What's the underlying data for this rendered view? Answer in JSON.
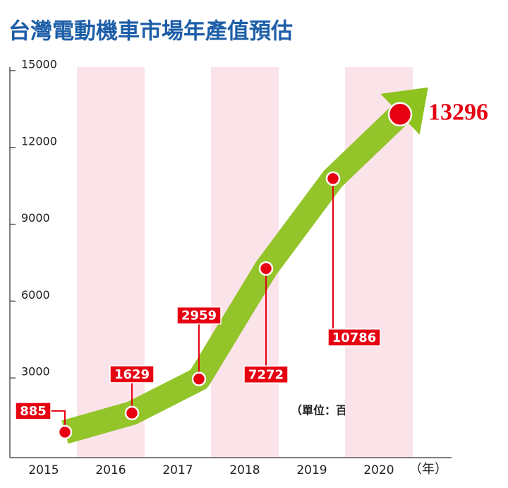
{
  "chart_data": {
    "type": "line",
    "title": "台灣電動機車市場年產值預估",
    "unit_note": "（單位：百萬元）",
    "x_unit": "（年）",
    "categories": [
      "2015",
      "2016",
      "2017",
      "2018",
      "2019",
      "2020"
    ],
    "values": [
      885,
      1629,
      2959,
      7272,
      10786,
      13296
    ],
    "color": "#8dc21f",
    "marker_color": "#e60012",
    "ylim": [
      0,
      15000
    ],
    "yticks": [
      3000,
      6000,
      9000,
      12000,
      15000
    ]
  }
}
